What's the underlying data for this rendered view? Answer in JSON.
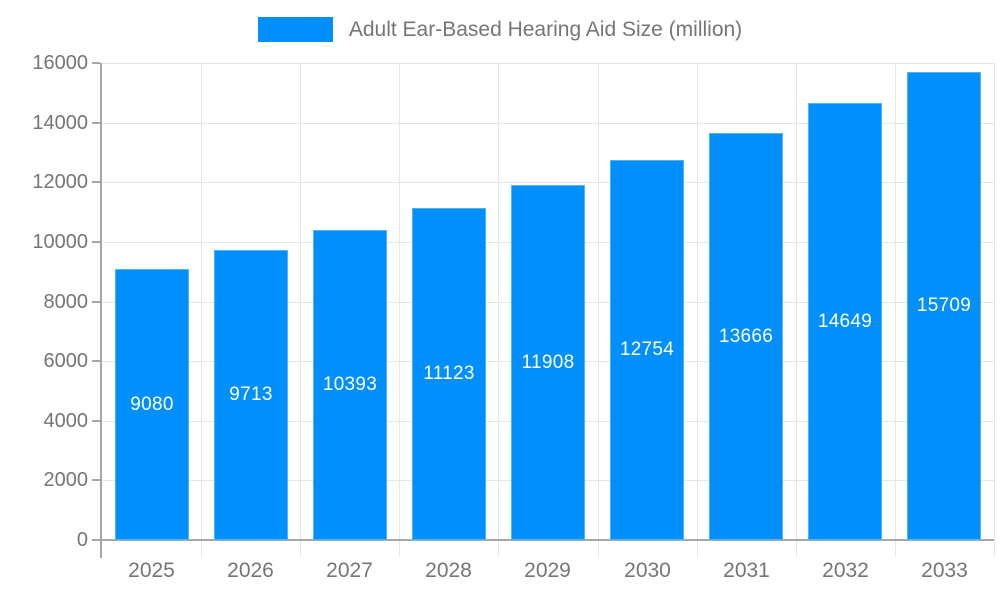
{
  "chart_data": {
    "type": "bar",
    "title": "Adult Ear-Based Hearing Aid Size (million)",
    "categories": [
      "2025",
      "2026",
      "2027",
      "2028",
      "2029",
      "2030",
      "2031",
      "2032",
      "2033"
    ],
    "values": [
      9080,
      9713,
      10393,
      11123,
      11908,
      12754,
      13666,
      14649,
      15709
    ],
    "series": [
      {
        "name": "Adult Ear-Based Hearing Aid Size (million)",
        "values": [
          9080,
          9713,
          10393,
          11123,
          11908,
          12754,
          13666,
          14649,
          15709
        ]
      }
    ],
    "xlabel": "",
    "ylabel": "",
    "ylim": [
      0,
      16000
    ],
    "yticks": [
      0,
      2000,
      4000,
      6000,
      8000,
      10000,
      12000,
      14000,
      16000
    ],
    "grid": true,
    "legend_position": "top",
    "value_label_position": "inside-center",
    "colors": {
      "bar": "#008FFB",
      "bar_border": "#4db4fc",
      "value_label": "#ffffff",
      "axis_line": "#a6a6a6",
      "gridline": "#e6e6e6",
      "text": "#757575",
      "background": "#ffffff"
    }
  }
}
